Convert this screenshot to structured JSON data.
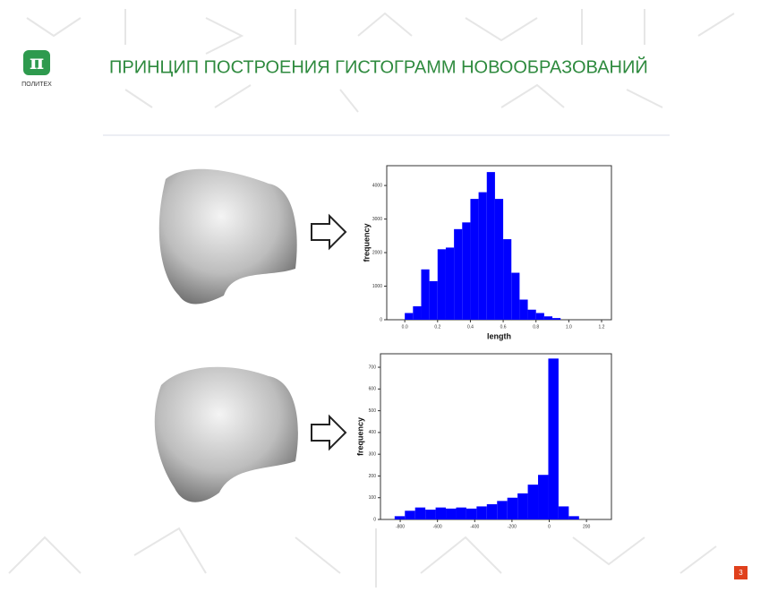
{
  "header": {
    "logo_text": "ПОЛИТЕХ",
    "title": "ПРИНЦИП ПОСТРОЕНИЯ ГИСТОГРАММ НОВООБРАЗОВАНИЙ"
  },
  "page_number": "3",
  "chart_data": [
    {
      "type": "histogram",
      "xlabel": "length",
      "ylabel": "frequency",
      "color": "#0000ff",
      "bins": [
        0,
        0.05,
        0.1,
        0.15,
        0.2,
        0.25,
        0.3,
        0.35,
        0.4,
        0.45,
        0.5,
        0.55,
        0.6,
        0.65,
        0.7,
        0.75,
        0.8,
        0.85,
        0.9,
        0.95
      ],
      "values": [
        200,
        400,
        1500,
        1150,
        2100,
        2150,
        2700,
        2900,
        3600,
        3800,
        4400,
        3600,
        2400,
        1400,
        600,
        300,
        200,
        100,
        50
      ],
      "xlim": [
        -0.11,
        1.26
      ],
      "ylim": [
        0,
        4590
      ],
      "xticks": [
        {
          "value": 0,
          "label": "0.0"
        },
        0.2,
        0.4,
        0.6,
        0.8,
        {
          "value": 1,
          "label": "1.0"
        },
        1.2
      ],
      "yticks": [
        0,
        1000,
        2000,
        3000,
        4000
      ]
    },
    {
      "type": "histogram",
      "ylabel": "frequency",
      "color": "#0000ff",
      "bins": [
        -830,
        -775,
        -720,
        -665,
        -610,
        -555,
        -500,
        -445,
        -390,
        -335,
        -280,
        -225,
        -170,
        -115,
        -60,
        -5,
        50,
        105,
        160
      ],
      "values": [
        15,
        40,
        55,
        45,
        55,
        50,
        55,
        50,
        60,
        70,
        85,
        100,
        120,
        160,
        205,
        740,
        60,
        15
      ],
      "xlim": [
        -906,
        334
      ],
      "ylim": [
        0,
        762
      ],
      "xticks": [
        -800,
        -600,
        -400,
        -200,
        0,
        200
      ],
      "yticks": [
        0,
        100,
        200,
        300,
        400,
        500,
        600,
        700
      ]
    }
  ]
}
